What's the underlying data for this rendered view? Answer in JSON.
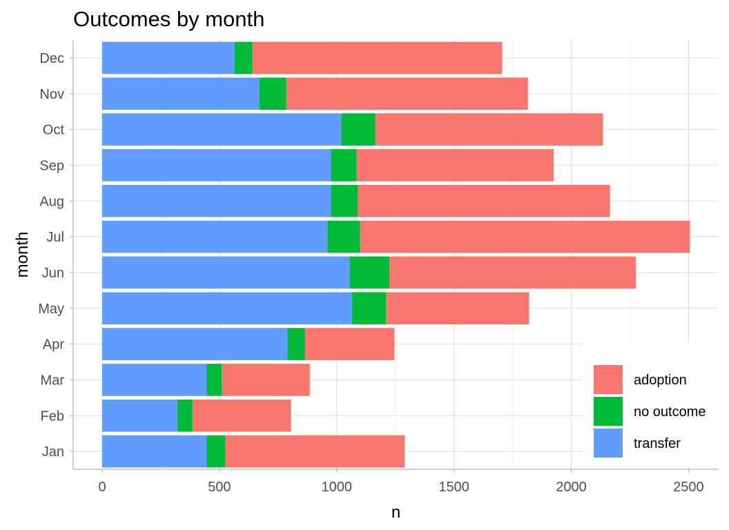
{
  "chart_data": {
    "type": "bar",
    "orientation": "horizontal",
    "stacked": true,
    "title": "Outcomes by month",
    "xlabel": "n",
    "ylabel": "month",
    "categories": [
      "Jan",
      "Feb",
      "Mar",
      "Apr",
      "May",
      "Jun",
      "Jul",
      "Aug",
      "Sep",
      "Oct",
      "Nov",
      "Dec"
    ],
    "series": [
      {
        "name": "transfer",
        "color": "#619CFF",
        "values": [
          445,
          320,
          445,
          790,
          1065,
          1055,
          960,
          975,
          975,
          1020,
          670,
          565
        ]
      },
      {
        "name": "no outcome",
        "color": "#00BA38",
        "values": [
          80,
          65,
          65,
          75,
          145,
          170,
          140,
          115,
          110,
          145,
          115,
          75
        ]
      },
      {
        "name": "adoption",
        "color": "#F8766D",
        "values": [
          765,
          420,
          375,
          380,
          610,
          1050,
          1405,
          1075,
          840,
          970,
          1030,
          1065
        ]
      }
    ],
    "xlim": [
      0,
      2500
    ],
    "xticks": [
      0,
      500,
      1000,
      1500,
      2000,
      2500
    ],
    "legend": {
      "position": "bottom-right",
      "entries": [
        "adoption",
        "no outcome",
        "transfer"
      ]
    },
    "grid": true
  }
}
